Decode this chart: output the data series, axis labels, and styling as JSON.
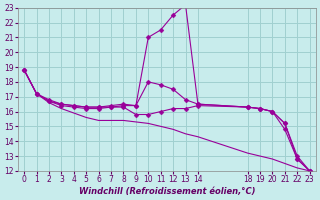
{
  "xlabel": "Windchill (Refroidissement éolien,°C)",
  "background_color": "#c8ecec",
  "grid_color": "#a0d0d0",
  "line_color": "#990099",
  "xlim": [
    -0.5,
    23.5
  ],
  "ylim": [
    12,
    23
  ],
  "xtick_positions": [
    0,
    1,
    2,
    3,
    4,
    5,
    6,
    7,
    8,
    9,
    10,
    11,
    12,
    13,
    14,
    18,
    19,
    20,
    21,
    22,
    23
  ],
  "xtick_labels": [
    "0",
    "1",
    "2",
    "3",
    "4",
    "5",
    "6",
    "7",
    "8",
    "9",
    "10",
    "11",
    "12",
    "13",
    "14",
    "18",
    "19",
    "20",
    "21",
    "22",
    "23"
  ],
  "yticks": [
    12,
    13,
    14,
    15,
    16,
    17,
    18,
    19,
    20,
    21,
    22,
    23
  ],
  "lines": [
    {
      "x": [
        0,
        1,
        2,
        3,
        4,
        5,
        6,
        7,
        8,
        9,
        10,
        11,
        12,
        13,
        14,
        18,
        19,
        20,
        21,
        22,
        23
      ],
      "y": [
        18.8,
        17.2,
        16.8,
        16.5,
        16.4,
        16.3,
        16.3,
        16.3,
        16.4,
        16.4,
        21.0,
        21.5,
        22.5,
        23.2,
        16.5,
        16.3,
        16.2,
        16.0,
        14.8,
        12.8,
        12.0
      ],
      "marker": true
    },
    {
      "x": [
        0,
        1,
        2,
        3,
        4,
        5,
        6,
        7,
        8,
        9,
        10,
        11,
        12,
        13,
        14,
        18,
        19,
        20,
        21,
        22,
        23
      ],
      "y": [
        18.8,
        17.2,
        16.7,
        16.5,
        16.4,
        16.3,
        16.3,
        16.4,
        16.5,
        16.4,
        18.0,
        17.8,
        17.5,
        16.8,
        16.5,
        16.3,
        16.2,
        16.0,
        15.2,
        13.0,
        12.0
      ],
      "marker": true
    },
    {
      "x": [
        0,
        1,
        2,
        3,
        4,
        5,
        6,
        7,
        8,
        9,
        10,
        11,
        12,
        13,
        14,
        18,
        19,
        20,
        21,
        22,
        23
      ],
      "y": [
        18.8,
        17.2,
        16.7,
        16.4,
        16.3,
        16.2,
        16.2,
        16.3,
        16.3,
        15.8,
        15.8,
        16.0,
        16.2,
        16.2,
        16.4,
        16.3,
        16.2,
        16.0,
        15.2,
        12.8,
        12.0
      ],
      "marker": true
    },
    {
      "x": [
        0,
        1,
        2,
        3,
        4,
        5,
        6,
        7,
        8,
        9,
        10,
        11,
        12,
        13,
        14,
        18,
        19,
        20,
        21,
        22,
        23
      ],
      "y": [
        18.8,
        17.2,
        16.6,
        16.2,
        15.9,
        15.6,
        15.4,
        15.4,
        15.4,
        15.3,
        15.2,
        15.0,
        14.8,
        14.5,
        14.3,
        13.2,
        13.0,
        12.8,
        12.5,
        12.2,
        12.0
      ],
      "marker": false
    }
  ]
}
